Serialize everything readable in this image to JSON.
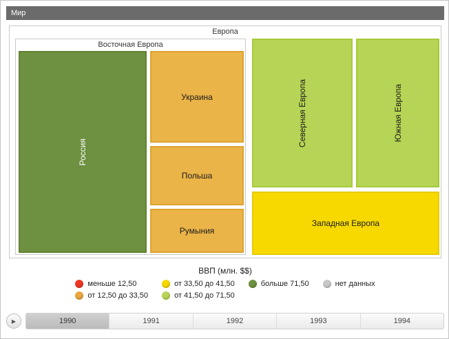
{
  "window": {
    "root_label": "Мир"
  },
  "treemap": {
    "europe_label": "Европа",
    "eastern_label": "Восточная Европа",
    "nodes": {
      "russia": {
        "label": "Россия",
        "fill": "#6e9041",
        "border": "#61822f",
        "text_color": "#ffffff"
      },
      "ukraine": {
        "label": "Украина",
        "fill": "#ebb448",
        "border": "#dda32f",
        "text_color": "#1a1a1a"
      },
      "poland": {
        "label": "Польша",
        "fill": "#ebb448",
        "border": "#dda32f",
        "text_color": "#1a1a1a"
      },
      "romania": {
        "label": "Румыния",
        "fill": "#ebb448",
        "border": "#dda32f",
        "text_color": "#1a1a1a"
      },
      "north": {
        "label": "Северная Европа",
        "fill": "#b6d455",
        "border": "#a6c93b",
        "text_color": "#1a1a1a"
      },
      "south": {
        "label": "Южная Европа",
        "fill": "#b6d455",
        "border": "#a6c93b",
        "text_color": "#1a1a1a"
      },
      "west": {
        "label": "Западная Европа",
        "fill": "#f7d900",
        "border": "#e6ca00",
        "text_color": "#1a1a1a"
      }
    }
  },
  "legend": {
    "title": "ВВП (млн. $$)",
    "items": [
      {
        "label": "меньше 12,50",
        "color": "#ee3524"
      },
      {
        "label": "от 33,50 до 41,50",
        "color": "#f7d900"
      },
      {
        "label": "больше 71,50",
        "color": "#6e9041"
      },
      {
        "label": "нет данных",
        "color": "#c9c9c9"
      },
      {
        "label": "от 12,50 до 33,50",
        "color": "#eba73e"
      },
      {
        "label": "от 41,50 до 71,50",
        "color": "#b6d455"
      }
    ]
  },
  "timeline": {
    "play_icon": "▶",
    "years": [
      {
        "label": "1990",
        "selected": true
      },
      {
        "label": "1991",
        "selected": false
      },
      {
        "label": "1992",
        "selected": false
      },
      {
        "label": "1993",
        "selected": false
      },
      {
        "label": "1994",
        "selected": false
      }
    ]
  },
  "chart_data": {
    "type": "treemap",
    "title": "ВВП (млн. $$)",
    "legend_position": "bottom",
    "color_scale": [
      {
        "range": "меньше 12,50",
        "color": "#ee3524"
      },
      {
        "range": "от 12,50 до 33,50",
        "color": "#eba73e"
      },
      {
        "range": "от 33,50 до 41,50",
        "color": "#f7d900"
      },
      {
        "range": "от 41,50 до 71,50",
        "color": "#b6d455"
      },
      {
        "range": "больше 71,50",
        "color": "#6e9041"
      },
      {
        "range": "нет данных",
        "color": "#c9c9c9"
      }
    ],
    "years": [
      "1990",
      "1991",
      "1992",
      "1993",
      "1994"
    ],
    "selected_year": "1990",
    "hierarchy": {
      "name": "Мир",
      "children": [
        {
          "name": "Европа",
          "children": [
            {
              "name": "Восточная Европа",
              "children": [
                {
                  "name": "Россия",
                  "category": "больше 71,50"
                },
                {
                  "name": "Украина",
                  "category": "от 12,50 до 33,50"
                },
                {
                  "name": "Польша",
                  "category": "от 12,50 до 33,50"
                },
                {
                  "name": "Румыния",
                  "category": "от 12,50 до 33,50"
                }
              ]
            },
            {
              "name": "Северная Европа",
              "category": "от 41,50 до 71,50"
            },
            {
              "name": "Южная Европа",
              "category": "от 41,50 до 71,50"
            },
            {
              "name": "Западная Европа",
              "category": "от 33,50 до 41,50"
            }
          ]
        }
      ]
    }
  }
}
